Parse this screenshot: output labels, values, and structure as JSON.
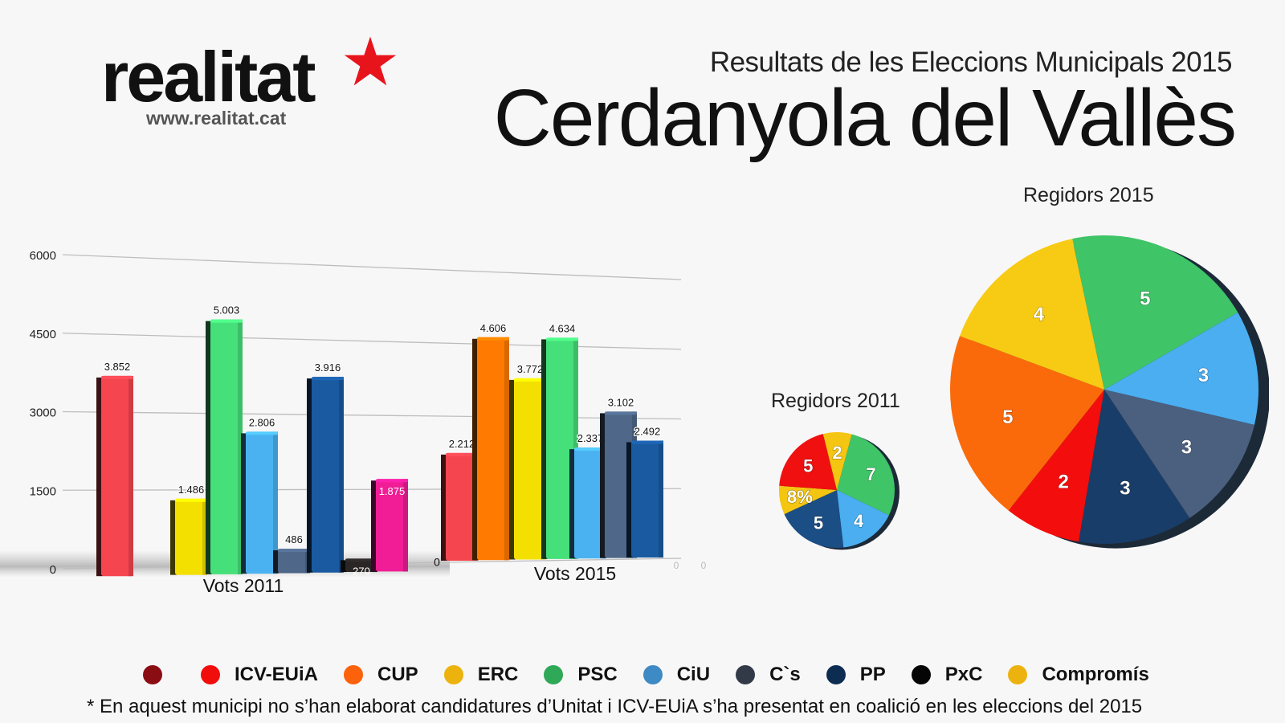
{
  "header": {
    "logo_text": "realitat",
    "logo_url_text": "www.realitat.cat",
    "logo_star_color": "#e8141c",
    "subtitle": "Resultats de les Eleccions Municipals 2015",
    "title": "Cerdanyola del Vallès"
  },
  "chart_data": [
    {
      "type": "bar",
      "title": "",
      "xlabel": "",
      "ylabel": "",
      "ylim": [
        0,
        6000
      ],
      "yticks": [
        "0",
        "1500",
        "3000",
        "4500",
        "6000"
      ],
      "grid": true,
      "groups": [
        {
          "label": "Vots 2011",
          "bars": [
            {
              "party": "ICV-EUiA",
              "value": 3852,
              "label": "3.852",
              "color": "#f5454f"
            },
            {
              "party": "CUP",
              "value": 0,
              "label": "",
              "color": "#ff7a00"
            },
            {
              "party": "ERC",
              "value": 1486,
              "label": "1.486",
              "color": "#f3e000"
            },
            {
              "party": "PSC",
              "value": 5003,
              "label": "5.003",
              "color": "#46e07a"
            },
            {
              "party": "CiU",
              "value": 2806,
              "label": "2.806",
              "color": "#4ab2f0"
            },
            {
              "party": "C`s",
              "value": 486,
              "label": "486",
              "color": "#4f6788"
            },
            {
              "party": "PP",
              "value": 3916,
              "label": "3.916",
              "color": "#1a5aa0"
            },
            {
              "party": "PxC",
              "value": 270,
              "label": "270",
              "color": "#2a2626"
            },
            {
              "party": "Altres",
              "value": 1875,
              "label": "1.875",
              "color": "#f01d96"
            }
          ]
        },
        {
          "label": "Vots 2015",
          "bars": [
            {
              "party": "",
              "value": 0,
              "label": "0",
              "color": "#8a1a1a"
            },
            {
              "party": "ICV-EUiA",
              "value": 2212,
              "label": "2.212",
              "color": "#f5454f"
            },
            {
              "party": "CUP",
              "value": 4606,
              "label": "4.606",
              "color": "#ff7a00"
            },
            {
              "party": "ERC",
              "value": 3772,
              "label": "3.772",
              "color": "#f3e000"
            },
            {
              "party": "PSC",
              "value": 4634,
              "label": "4.634",
              "color": "#46e07a"
            },
            {
              "party": "CiU",
              "value": 2337,
              "label": "2.337",
              "color": "#4ab2f0"
            },
            {
              "party": "C`s",
              "value": 3102,
              "label": "3.102",
              "color": "#4f6788"
            },
            {
              "party": "PP",
              "value": 2492,
              "label": "2.492",
              "color": "#1a5aa0"
            }
          ],
          "trailing_zero_labels": [
            "0",
            "0"
          ]
        }
      ]
    },
    {
      "type": "pie",
      "title": "Regidors 2011",
      "slices": [
        {
          "party": "PSC",
          "value": 7,
          "label": "7",
          "color": "#3fc467"
        },
        {
          "party": "CiU",
          "value": 4,
          "label": "4",
          "color": "#4aaef0"
        },
        {
          "party": "PP",
          "value": 5,
          "label": "5",
          "color": "#1b4e85"
        },
        {
          "party": "Compromís",
          "value": 2,
          "label": "8%",
          "color": "#f4c511"
        },
        {
          "party": "ICV-EUiA",
          "value": 5,
          "label": "5",
          "color": "#f01010"
        },
        {
          "party": "ERC",
          "value": 2,
          "label": "2",
          "color": "#f4c511"
        }
      ]
    },
    {
      "type": "pie",
      "title": "Regidors 2015",
      "slices": [
        {
          "party": "PSC",
          "value": 5,
          "label": "5",
          "color": "#3fc467"
        },
        {
          "party": "CiU",
          "value": 3,
          "label": "3",
          "color": "#4aaef0"
        },
        {
          "party": "C`s",
          "value": 3,
          "label": "3",
          "color": "#4b5f7e"
        },
        {
          "party": "PP",
          "value": 3,
          "label": "3",
          "color": "#183d68"
        },
        {
          "party": "ICV-EUiA",
          "value": 2,
          "label": "2",
          "color": "#f40d0d"
        },
        {
          "party": "CUP",
          "value": 5,
          "label": "5",
          "color": "#fb6a0a"
        },
        {
          "party": "ERC",
          "value": 4,
          "label": "4",
          "color": "#f7cb14"
        }
      ]
    }
  ],
  "legend": [
    {
      "label": "",
      "color": "#8b0d14"
    },
    {
      "label": "ICV-EUiA",
      "color": "#f20d0d"
    },
    {
      "label": "CUP",
      "color": "#fb620b"
    },
    {
      "label": "ERC",
      "color": "#ecb30f"
    },
    {
      "label": "PSC",
      "color": "#2fa857"
    },
    {
      "label": "CiU",
      "color": "#3d8ac4"
    },
    {
      "label": "C`s",
      "color": "#323a48"
    },
    {
      "label": "PP",
      "color": "#0d2c52"
    },
    {
      "label": "PxC",
      "color": "#050505"
    },
    {
      "label": "Compromís",
      "color": "#ecb30f"
    }
  ],
  "footnote": "* En aquest municipi no s’han elaborat candidatures d’Unitat i ICV-EUiA s’ha presentat en coalició en les eleccions del 2015"
}
